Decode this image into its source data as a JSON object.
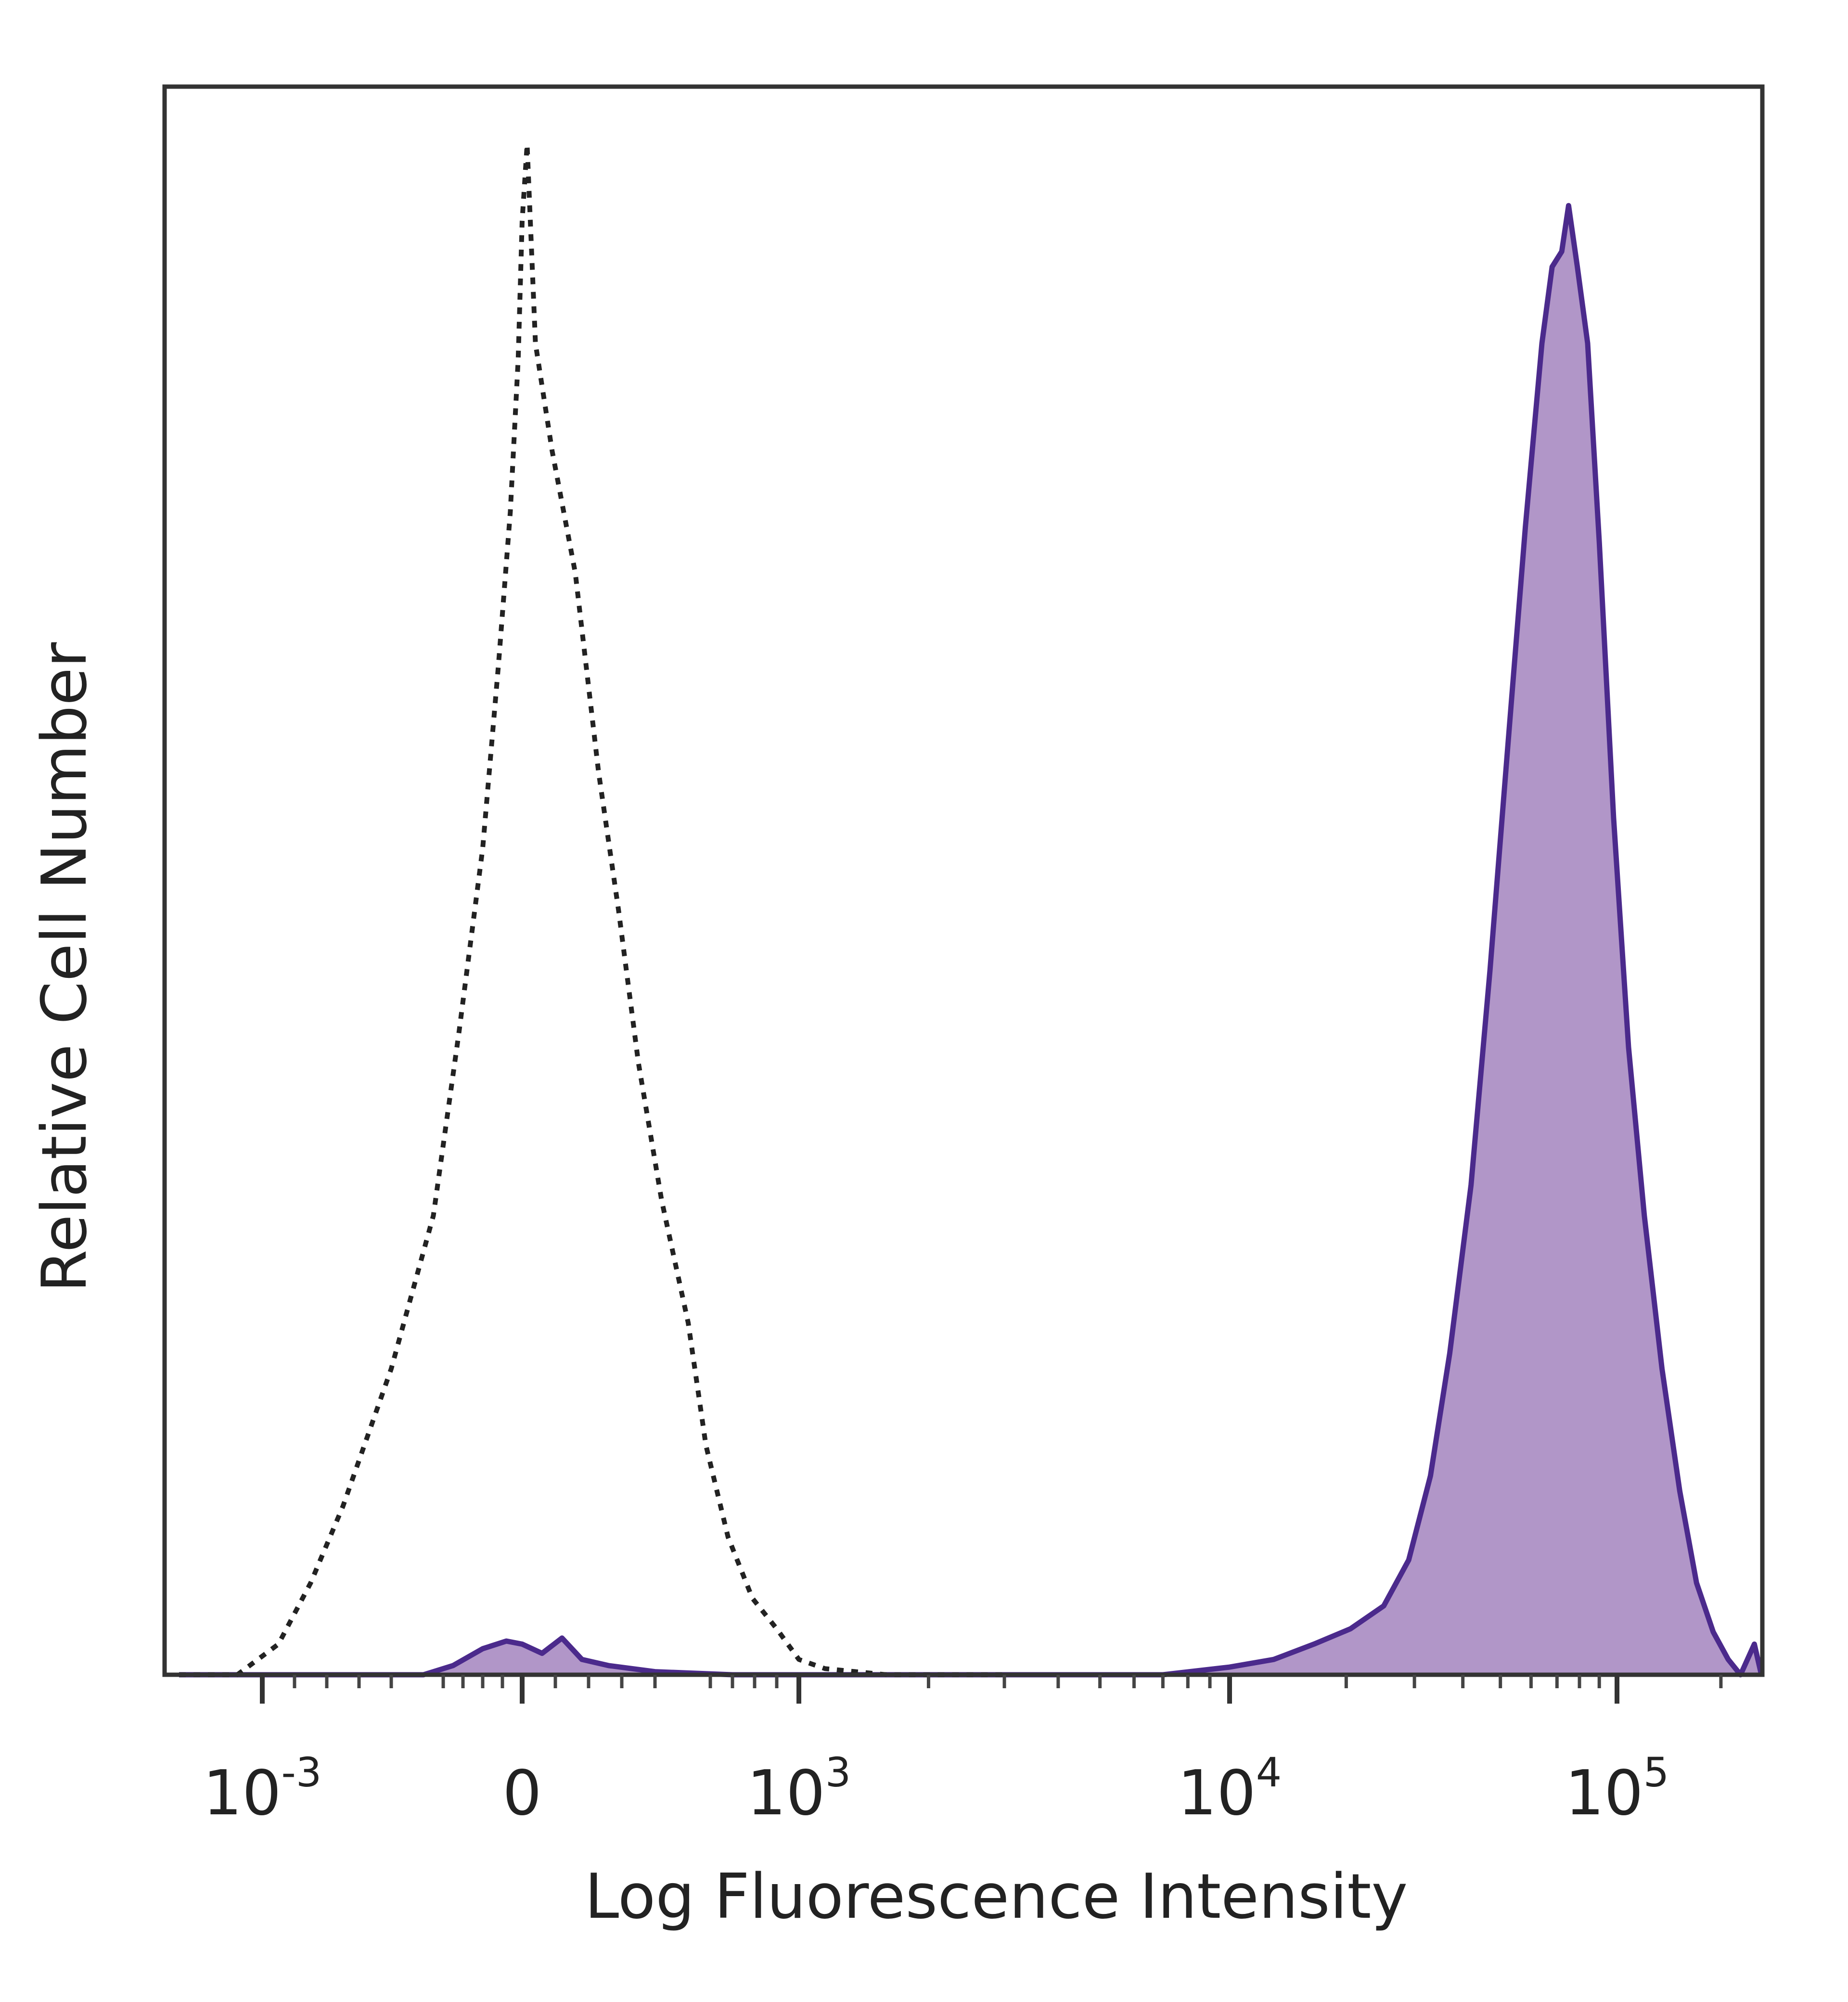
{
  "chart_data": {
    "type": "area",
    "title": "",
    "xlabel": "Log Fluorescence Intensity",
    "ylabel": "Relative Cell Number",
    "x_scale": "biexponential",
    "x_ticks": [
      {
        "value": -1000,
        "base": "10",
        "exp": "-3"
      },
      {
        "value": 0,
        "base": "0",
        "exp": ""
      },
      {
        "value": 1000,
        "base": "10",
        "exp": "3"
      },
      {
        "value": 10000,
        "base": "10",
        "exp": "4"
      },
      {
        "value": 100000,
        "base": "10",
        "exp": "5"
      }
    ],
    "grid": false,
    "legend": "none",
    "series": [
      {
        "style": "dotted-outline",
        "color": "#222222",
        "filled": false,
        "points": [
          [
            -1500,
            0.0
          ],
          [
            -1150,
            0.0
          ],
          [
            -950,
            0.02
          ],
          [
            -850,
            0.06
          ],
          [
            -750,
            0.11
          ],
          [
            -600,
            0.2
          ],
          [
            -450,
            0.3
          ],
          [
            -320,
            0.42
          ],
          [
            -200,
            0.54
          ],
          [
            -120,
            0.66
          ],
          [
            -60,
            0.76
          ],
          [
            -20,
            0.86
          ],
          [
            0,
            0.95
          ],
          [
            15,
            1.0
          ],
          [
            40,
            0.87
          ],
          [
            90,
            0.8
          ],
          [
            160,
            0.72
          ],
          [
            230,
            0.59
          ],
          [
            290,
            0.5
          ],
          [
            350,
            0.4
          ],
          [
            420,
            0.31
          ],
          [
            500,
            0.23
          ],
          [
            580,
            0.15
          ],
          [
            680,
            0.09
          ],
          [
            790,
            0.05
          ],
          [
            900,
            0.03
          ],
          [
            1000,
            0.01
          ],
          [
            1150,
            0.004
          ],
          [
            1600,
            0.0
          ],
          [
            3000,
            0.0
          ]
        ]
      },
      {
        "style": "filled",
        "color": "#4b2a8c",
        "fill": "#b196c8",
        "filled": true,
        "points": [
          [
            -1500,
            0.0
          ],
          [
            -500,
            0.0
          ],
          [
            -350,
            0.006
          ],
          [
            -200,
            0.017
          ],
          [
            -80,
            0.022
          ],
          [
            0,
            0.02
          ],
          [
            60,
            0.014
          ],
          [
            120,
            0.024
          ],
          [
            180,
            0.01
          ],
          [
            260,
            0.006
          ],
          [
            400,
            0.002
          ],
          [
            700,
            0.0
          ],
          [
            7000,
            0.0
          ],
          [
            10000,
            0.005
          ],
          [
            13000,
            0.01
          ],
          [
            16500,
            0.02
          ],
          [
            20500,
            0.03
          ],
          [
            25000,
            0.045
          ],
          [
            29000,
            0.075
          ],
          [
            33000,
            0.13
          ],
          [
            37000,
            0.21
          ],
          [
            42000,
            0.32
          ],
          [
            47000,
            0.46
          ],
          [
            52000,
            0.6
          ],
          [
            58000,
            0.75
          ],
          [
            64000,
            0.87
          ],
          [
            68000,
            0.92
          ],
          [
            72000,
            0.93
          ],
          [
            75000,
            0.96
          ],
          [
            79000,
            0.92
          ],
          [
            84000,
            0.87
          ],
          [
            90000,
            0.74
          ],
          [
            98000,
            0.56
          ],
          [
            108000,
            0.41
          ],
          [
            120000,
            0.3
          ],
          [
            135000,
            0.2
          ],
          [
            152000,
            0.12
          ],
          [
            170000,
            0.06
          ],
          [
            190000,
            0.028
          ],
          [
            210000,
            0.01
          ],
          [
            228000,
            0.0
          ],
          [
            250000,
            0.02
          ],
          [
            262000,
            0.0
          ]
        ]
      }
    ]
  }
}
